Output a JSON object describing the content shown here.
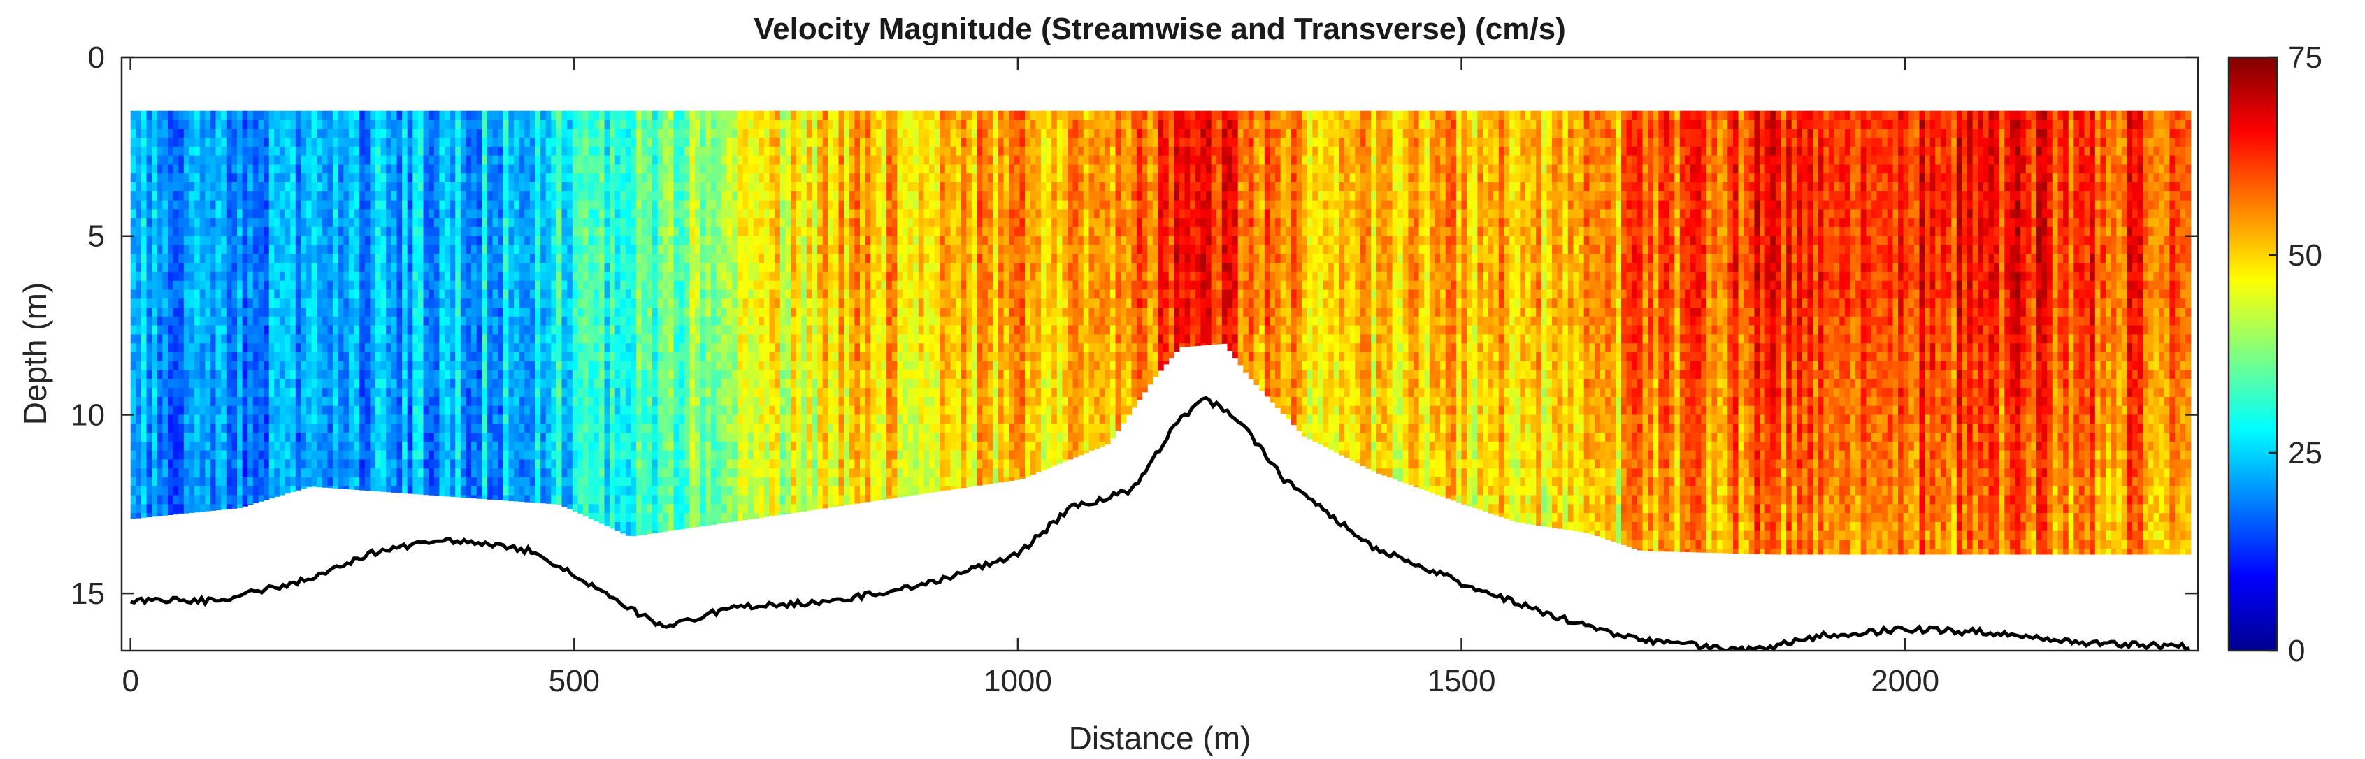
{
  "chart_data": {
    "type": "heatmap",
    "title": "Velocity Magnitude (Streamwise and Transverse) (cm/s)",
    "xlabel": "Distance (m)",
    "ylabel": "Depth (m)",
    "xlim": [
      -10,
      2330
    ],
    "ylim": [
      0,
      16.6
    ],
    "y_reversed": true,
    "xticks": [
      0,
      500,
      1000,
      1500,
      2000
    ],
    "xtick_labels": [
      "0",
      "500",
      "1000",
      "1500",
      "2000"
    ],
    "yticks": [
      0,
      5,
      10,
      15
    ],
    "ytick_labels": [
      "0",
      "5",
      "10",
      "15"
    ],
    "colorbar": {
      "colormap": "jet",
      "clim": [
        0,
        75
      ],
      "ticks": [
        0,
        25,
        50,
        75
      ],
      "tick_labels": [
        "0",
        "25",
        "50",
        "75"
      ]
    },
    "measurement_top_depth": 1.5,
    "measurement_bottom_depth": [
      {
        "x": 0,
        "depth": 12.9
      },
      {
        "x": 120,
        "depth": 12.6
      },
      {
        "x": 200,
        "depth": 12.0
      },
      {
        "x": 480,
        "depth": 12.5
      },
      {
        "x": 560,
        "depth": 13.4
      },
      {
        "x": 700,
        "depth": 12.9
      },
      {
        "x": 1000,
        "depth": 11.8
      },
      {
        "x": 1100,
        "depth": 10.8
      },
      {
        "x": 1150,
        "depth": 9.0
      },
      {
        "x": 1180,
        "depth": 8.1
      },
      {
        "x": 1230,
        "depth": 8.0
      },
      {
        "x": 1260,
        "depth": 9.0
      },
      {
        "x": 1320,
        "depth": 10.6
      },
      {
        "x": 1400,
        "depth": 11.6
      },
      {
        "x": 1500,
        "depth": 12.5
      },
      {
        "x": 1560,
        "depth": 13.0
      },
      {
        "x": 1640,
        "depth": 13.3
      },
      {
        "x": 1700,
        "depth": 13.8
      },
      {
        "x": 1850,
        "depth": 13.9
      },
      {
        "x": 2000,
        "depth": 13.9
      },
      {
        "x": 2320,
        "depth": 13.9
      }
    ],
    "velocity_profile_by_distance": [
      {
        "x": 0,
        "velocity": 22
      },
      {
        "x": 100,
        "velocity": 21
      },
      {
        "x": 200,
        "velocity": 21
      },
      {
        "x": 300,
        "velocity": 22
      },
      {
        "x": 400,
        "velocity": 24
      },
      {
        "x": 480,
        "velocity": 28
      },
      {
        "x": 550,
        "velocity": 33
      },
      {
        "x": 650,
        "velocity": 40
      },
      {
        "x": 750,
        "velocity": 49
      },
      {
        "x": 850,
        "velocity": 52
      },
      {
        "x": 950,
        "velocity": 53
      },
      {
        "x": 1050,
        "velocity": 54
      },
      {
        "x": 1150,
        "velocity": 60
      },
      {
        "x": 1200,
        "velocity": 68
      },
      {
        "x": 1260,
        "velocity": 57
      },
      {
        "x": 1350,
        "velocity": 52
      },
      {
        "x": 1450,
        "velocity": 52
      },
      {
        "x": 1550,
        "velocity": 52
      },
      {
        "x": 1650,
        "velocity": 52
      },
      {
        "x": 1700,
        "velocity": 58
      },
      {
        "x": 1850,
        "velocity": 63
      },
      {
        "x": 2000,
        "velocity": 63
      },
      {
        "x": 2150,
        "velocity": 63
      },
      {
        "x": 2320,
        "velocity": 60
      }
    ],
    "bed_profile": [
      {
        "x": 0,
        "depth": 15.2
      },
      {
        "x": 100,
        "depth": 15.2
      },
      {
        "x": 200,
        "depth": 14.6
      },
      {
        "x": 280,
        "depth": 13.8
      },
      {
        "x": 350,
        "depth": 13.5
      },
      {
        "x": 450,
        "depth": 13.8
      },
      {
        "x": 500,
        "depth": 14.5
      },
      {
        "x": 560,
        "depth": 15.4
      },
      {
        "x": 600,
        "depth": 15.9
      },
      {
        "x": 680,
        "depth": 15.4
      },
      {
        "x": 800,
        "depth": 15.2
      },
      {
        "x": 900,
        "depth": 14.7
      },
      {
        "x": 1000,
        "depth": 13.9
      },
      {
        "x": 1060,
        "depth": 12.6
      },
      {
        "x": 1130,
        "depth": 12.1
      },
      {
        "x": 1180,
        "depth": 10.2
      },
      {
        "x": 1210,
        "depth": 9.5
      },
      {
        "x": 1250,
        "depth": 10.2
      },
      {
        "x": 1300,
        "depth": 11.8
      },
      {
        "x": 1400,
        "depth": 13.7
      },
      {
        "x": 1500,
        "depth": 14.7
      },
      {
        "x": 1600,
        "depth": 15.6
      },
      {
        "x": 1700,
        "depth": 16.3
      },
      {
        "x": 1830,
        "depth": 16.6
      },
      {
        "x": 1900,
        "depth": 16.2
      },
      {
        "x": 2000,
        "depth": 16.0
      },
      {
        "x": 2100,
        "depth": 16.1
      },
      {
        "x": 2200,
        "depth": 16.4
      },
      {
        "x": 2320,
        "depth": 16.5
      }
    ]
  }
}
